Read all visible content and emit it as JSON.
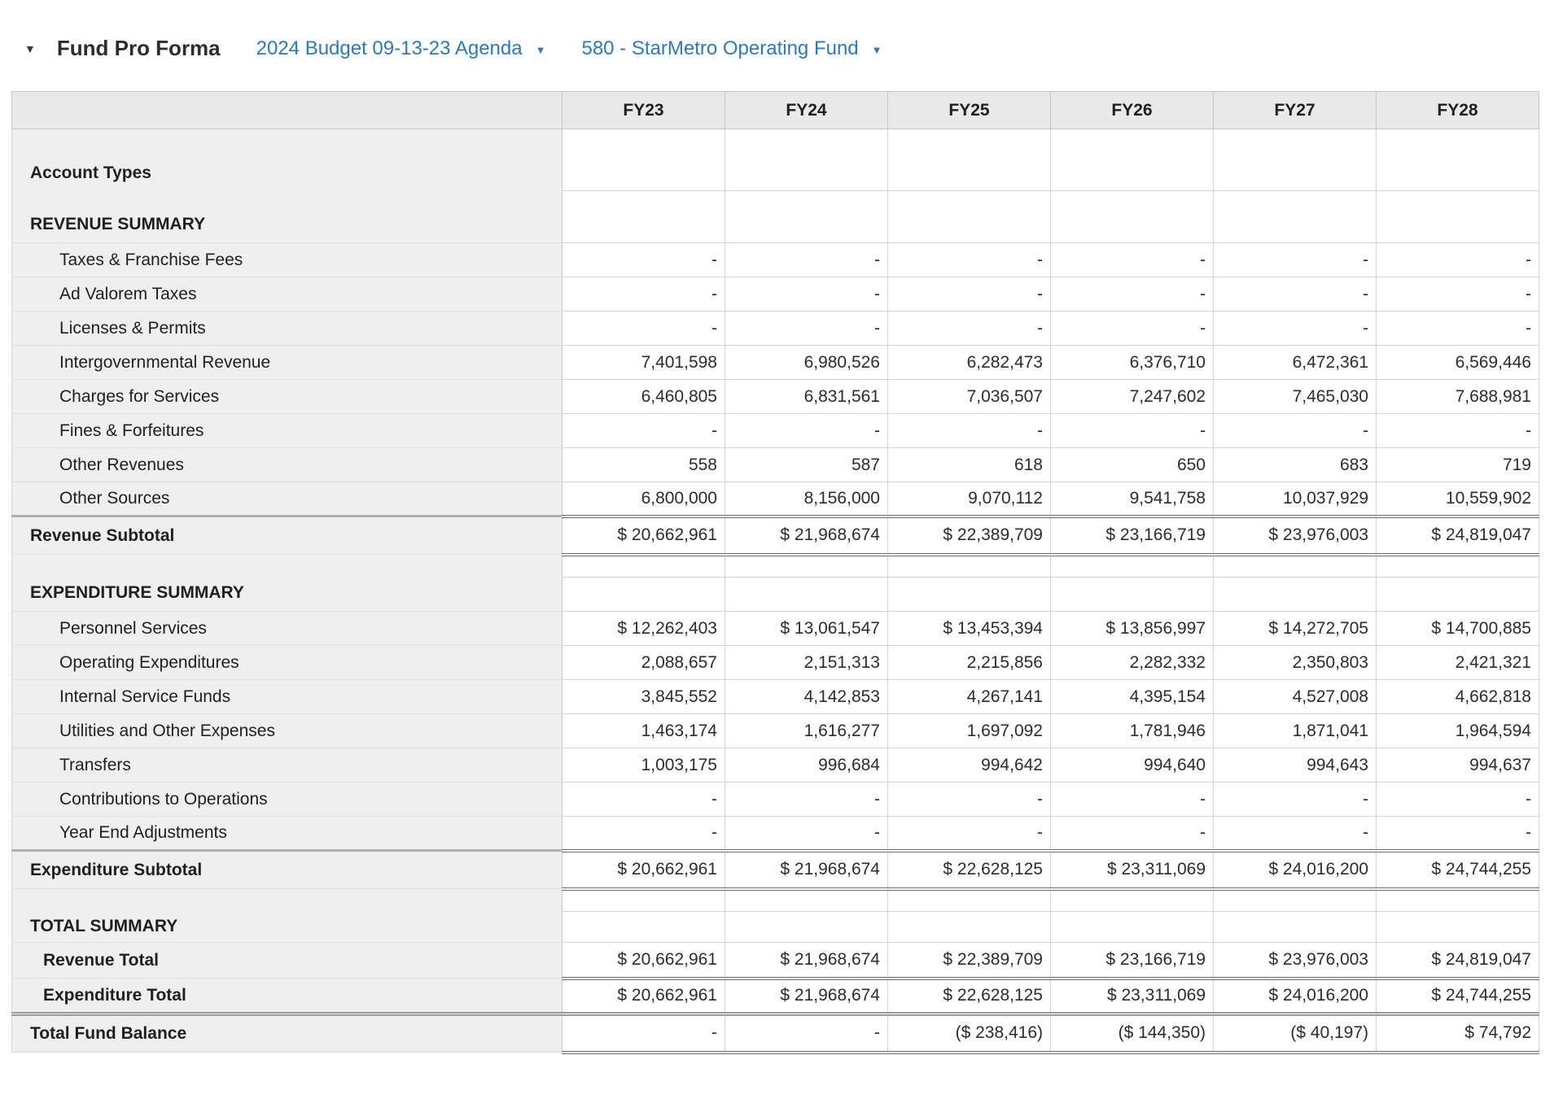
{
  "topbar": {
    "collapse_icon": "▼",
    "title": "Fund Pro Forma",
    "dropdowns": [
      {
        "label": "2024 Budget 09-13-23 Agenda",
        "caret": "▼"
      },
      {
        "label": "580 - StarMetro Operating Fund",
        "caret": "▼"
      }
    ],
    "accent_color": "#2b7abc"
  },
  "table": {
    "columns": [
      "FY23",
      "FY24",
      "FY25",
      "FY26",
      "FY27",
      "FY28"
    ],
    "rows": [
      {
        "label": "Account Types",
        "type": "group",
        "values": [
          "",
          "",
          "",
          "",
          "",
          ""
        ]
      },
      {
        "label": "REVENUE SUMMARY",
        "type": "section-lg",
        "values": [
          "",
          "",
          "",
          "",
          "",
          ""
        ]
      },
      {
        "label": "Taxes & Franchise Fees",
        "type": "item",
        "values": [
          "-",
          "-",
          "-",
          "-",
          "-",
          "-"
        ]
      },
      {
        "label": "Ad Valorem Taxes",
        "type": "item",
        "values": [
          "-",
          "-",
          "-",
          "-",
          "-",
          "-"
        ]
      },
      {
        "label": "Licenses & Permits",
        "type": "item",
        "values": [
          "-",
          "-",
          "-",
          "-",
          "-",
          "-"
        ]
      },
      {
        "label": "Intergovernmental Revenue",
        "type": "item",
        "values": [
          "7,401,598",
          "6,980,526",
          "6,282,473",
          "6,376,710",
          "6,472,361",
          "6,569,446"
        ]
      },
      {
        "label": "Charges for Services",
        "type": "item",
        "values": [
          "6,460,805",
          "6,831,561",
          "7,036,507",
          "7,247,602",
          "7,465,030",
          "7,688,981"
        ]
      },
      {
        "label": "Fines & Forfeitures",
        "type": "item",
        "values": [
          "-",
          "-",
          "-",
          "-",
          "-",
          "-"
        ]
      },
      {
        "label": "Other Revenues",
        "type": "item",
        "values": [
          "558",
          "587",
          "618",
          "650",
          "683",
          "719"
        ]
      },
      {
        "label": "Other Sources",
        "type": "item",
        "values": [
          "6,800,000",
          "8,156,000",
          "9,070,112",
          "9,541,758",
          "10,037,929",
          "10,559,902"
        ]
      },
      {
        "label": "Revenue Subtotal",
        "type": "subtotal",
        "values": [
          "$ 20,662,961",
          "$ 21,968,674",
          "$ 22,389,709",
          "$ 23,166,719",
          "$ 23,976,003",
          "$ 24,819,047"
        ]
      },
      {
        "label": "",
        "type": "spacer",
        "values": [
          "",
          "",
          "",
          "",
          "",
          ""
        ]
      },
      {
        "label": "EXPENDITURE SUMMARY",
        "type": "section",
        "values": [
          "",
          "",
          "",
          "",
          "",
          ""
        ]
      },
      {
        "label": "Personnel Services",
        "type": "item",
        "values": [
          "$ 12,262,403",
          "$ 13,061,547",
          "$ 13,453,394",
          "$ 13,856,997",
          "$ 14,272,705",
          "$ 14,700,885"
        ]
      },
      {
        "label": "Operating Expenditures",
        "type": "item",
        "values": [
          "2,088,657",
          "2,151,313",
          "2,215,856",
          "2,282,332",
          "2,350,803",
          "2,421,321"
        ]
      },
      {
        "label": "Internal Service Funds",
        "type": "item",
        "values": [
          "3,845,552",
          "4,142,853",
          "4,267,141",
          "4,395,154",
          "4,527,008",
          "4,662,818"
        ]
      },
      {
        "label": "Utilities and Other Expenses",
        "type": "item",
        "values": [
          "1,463,174",
          "1,616,277",
          "1,697,092",
          "1,781,946",
          "1,871,041",
          "1,964,594"
        ]
      },
      {
        "label": "Transfers",
        "type": "item",
        "values": [
          "1,003,175",
          "996,684",
          "994,642",
          "994,640",
          "994,643",
          "994,637"
        ]
      },
      {
        "label": "Contributions to Operations",
        "type": "item",
        "values": [
          "-",
          "-",
          "-",
          "-",
          "-",
          "-"
        ]
      },
      {
        "label": "Year End Adjustments",
        "type": "item",
        "values": [
          "-",
          "-",
          "-",
          "-",
          "-",
          "-"
        ]
      },
      {
        "label": "Expenditure Subtotal",
        "type": "subtotal",
        "values": [
          "$ 20,662,961",
          "$ 21,968,674",
          "$ 22,628,125",
          "$ 23,311,069",
          "$ 24,016,200",
          "$ 24,744,255"
        ]
      },
      {
        "label": "",
        "type": "spacer",
        "values": [
          "",
          "",
          "",
          "",
          "",
          ""
        ]
      },
      {
        "label": "TOTAL SUMMARY",
        "type": "section-sm",
        "values": [
          "",
          "",
          "",
          "",
          "",
          ""
        ]
      },
      {
        "label": "Revenue Total",
        "type": "total-u",
        "values": [
          "$ 20,662,961",
          "$ 21,968,674",
          "$ 22,389,709",
          "$ 23,166,719",
          "$ 23,976,003",
          "$ 24,819,047"
        ]
      },
      {
        "label": "Expenditure Total",
        "type": "total",
        "values": [
          "$ 20,662,961",
          "$ 21,968,674",
          "$ 22,628,125",
          "$ 23,311,069",
          "$ 24,016,200",
          "$ 24,744,255"
        ]
      },
      {
        "label": "Total Fund Balance",
        "type": "grand",
        "values": [
          "-",
          "-",
          "($ 238,416)",
          "($ 144,350)",
          "($ 40,197)",
          "$ 74,792"
        ]
      }
    ]
  }
}
